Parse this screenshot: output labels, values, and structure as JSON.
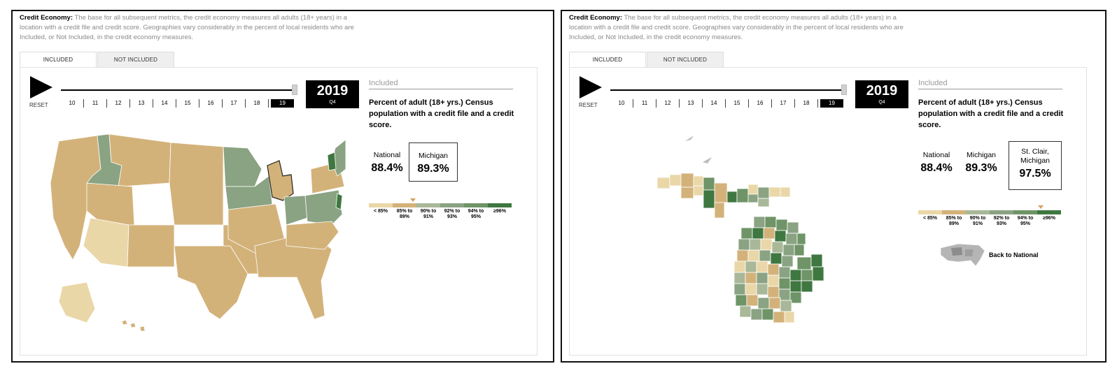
{
  "panels": [
    {
      "intro": {
        "label": "Credit Economy:",
        "text": " The base for all subsequent metrics, the credit economy measures all adults (18+ years) in a location with a credit file and credit score. Geographies vary considerably in the percent of local residents who are Included, or Not Included, in the credit economy measures."
      },
      "tabs": {
        "included": "INCLUDED",
        "not_included": "NOT INCLUDED"
      },
      "controls": {
        "reset": "RESET",
        "years": [
          "10",
          "11",
          "12",
          "13",
          "14",
          "15",
          "16",
          "17",
          "18",
          "19"
        ],
        "selected_year": "19"
      },
      "year_box": {
        "year": "2019",
        "quarter": "Q4"
      },
      "info": {
        "title": "Included",
        "description": "Percent of adult (18+ yrs.) Census population with a credit file and a credit score."
      },
      "stats": [
        {
          "label": "National",
          "value": "88.4%"
        },
        {
          "label": "Michigan",
          "value": "89.3%",
          "boxed": true
        }
      ],
      "legend": [
        "< 85%",
        "85% to 89%",
        "90% to 91%",
        "92% to 93%",
        "94% to 95%",
        "≥96%"
      ]
    },
    {
      "intro": {
        "label": "Credit Economy:",
        "text": " The base for all subsequent metrics, the credit economy measures all adults (18+ years) in a location with a credit file and credit score. Geographies vary considerably in the percent of local residents who are Included, or Not Included, in the credit economy measures."
      },
      "tabs": {
        "included": "INCLUDED",
        "not_included": "NOT INCLUDED"
      },
      "controls": {
        "reset": "RESET",
        "years": [
          "10",
          "11",
          "12",
          "13",
          "14",
          "15",
          "16",
          "17",
          "18",
          "19"
        ],
        "selected_year": "19"
      },
      "year_box": {
        "year": "2019",
        "quarter": "Q4"
      },
      "info": {
        "title": "Included",
        "description": "Percent of adult (18+ yrs.) Census population with a credit file and a credit score."
      },
      "stats": [
        {
          "label": "National",
          "value": "88.4%"
        },
        {
          "label": "Michigan",
          "value": "89.3%"
        },
        {
          "label": "St. Clair, Michigan",
          "value": "97.5%",
          "boxed": true
        }
      ],
      "legend": [
        "< 85%",
        "85% to 89%",
        "90% to 91%",
        "92% to 93%",
        "94% to 95%",
        "≥96%"
      ],
      "back_link": "Back to National"
    }
  ],
  "colors": {
    "lt85": "#ead7a8",
    "c85_89": "#d3b27a",
    "c90_91": "#a8b898",
    "c92_93": "#8aa383",
    "c94_95": "#6f9467",
    "ge96": "#3f7741",
    "marker": "#d9a060"
  }
}
